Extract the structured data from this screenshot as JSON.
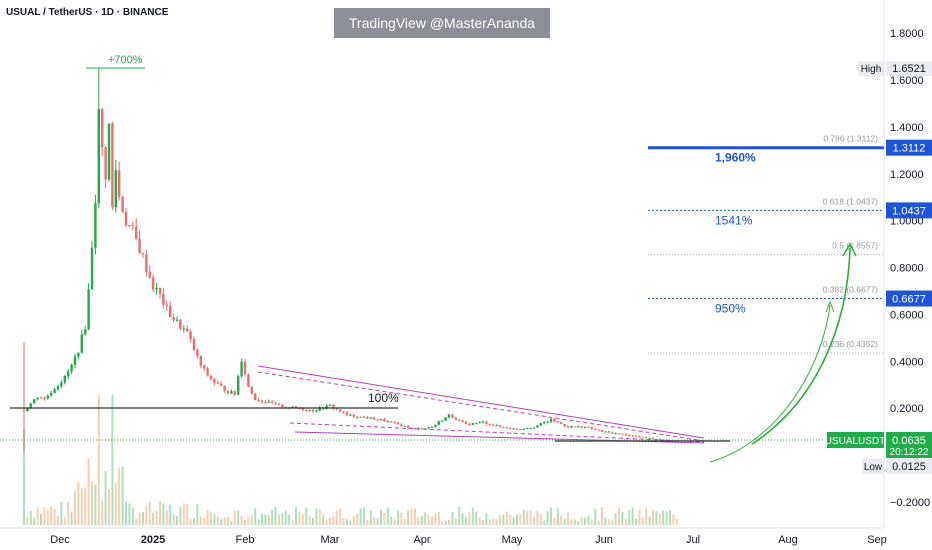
{
  "header": {
    "symbol_line": "USUAL / TetherUS · 1D · BINANCE",
    "watermark": "TradingView @MasterAnanda"
  },
  "colors": {
    "up": "#22ab4a",
    "down": "#f06b6b",
    "blue": "#1e55d6",
    "magenta": "#b83fc4",
    "green_arrow": "#2bb03a",
    "baseline": "#333333"
  },
  "chart_data": {
    "type": "candlestick",
    "title": "USUAL / TetherUS · 1D · BINANCE",
    "x_axis_labels": [
      "Dec",
      "2025",
      "Feb",
      "Mar",
      "Apr",
      "May",
      "Jun",
      "Jul",
      "Aug",
      "Sep"
    ],
    "y_axis_labels": [
      "1.8000",
      "1.6000",
      "1.4000",
      "1.2000",
      "1.0000",
      "0.8000",
      "0.6000",
      "0.4000",
      "0.2000",
      "−0.2000"
    ],
    "ylim": [
      -0.27,
      1.92
    ],
    "high": {
      "label": "High",
      "value": "1.6521"
    },
    "low": {
      "label": "Low",
      "value": "0.0125"
    },
    "current": {
      "symbol": "USUALUSDT",
      "price": "0.0635",
      "countdown": "20:12:22"
    },
    "fib_levels": [
      {
        "ratio": "0.786",
        "label": "0.786 (1.3112)",
        "value": 1.3112,
        "price_tag": "1.3112",
        "target": "1,960%"
      },
      {
        "ratio": "0.618",
        "label": "0.618 (1.0437)",
        "value": 1.0437,
        "price_tag": "1.0437",
        "target": "1541%"
      },
      {
        "ratio": "0.5",
        "label": "0.5 (0.8557)",
        "value": 0.8557
      },
      {
        "ratio": "0.382",
        "label": "0.382 (0.6677)",
        "value": 0.6677,
        "price_tag": "0.6677",
        "target": "950%"
      },
      {
        "ratio": "0.236",
        "label": "0.236 (0.4352)",
        "value": 0.4352
      }
    ],
    "annotations": [
      "+700%",
      "100%"
    ],
    "price_path": [
      [
        0,
        0.19
      ],
      [
        2,
        0.22
      ],
      [
        4,
        0.25
      ],
      [
        6,
        0.24
      ],
      [
        8,
        0.27
      ],
      [
        10,
        0.3
      ],
      [
        12,
        0.33
      ],
      [
        14,
        0.38
      ],
      [
        16,
        0.45
      ],
      [
        18,
        0.55
      ],
      [
        19,
        0.7
      ],
      [
        20,
        0.9
      ],
      [
        21,
        1.1
      ],
      [
        22,
        1.45
      ],
      [
        23,
        1.3
      ],
      [
        24,
        1.2
      ],
      [
        25,
        1.4
      ],
      [
        26,
        1.05
      ],
      [
        27,
        1.22
      ],
      [
        28,
        1.1
      ],
      [
        30,
        1.0
      ],
      [
        32,
        0.95
      ],
      [
        34,
        0.88
      ],
      [
        36,
        0.8
      ],
      [
        38,
        0.72
      ],
      [
        40,
        0.68
      ],
      [
        42,
        0.62
      ],
      [
        44,
        0.58
      ],
      [
        46,
        0.55
      ],
      [
        48,
        0.52
      ],
      [
        50,
        0.45
      ],
      [
        52,
        0.38
      ],
      [
        54,
        0.34
      ],
      [
        56,
        0.31
      ],
      [
        58,
        0.29
      ],
      [
        60,
        0.27
      ],
      [
        62,
        0.26
      ],
      [
        64,
        0.41
      ],
      [
        66,
        0.29
      ],
      [
        68,
        0.24
      ],
      [
        70,
        0.23
      ],
      [
        75,
        0.21
      ],
      [
        80,
        0.2
      ],
      [
        85,
        0.19
      ],
      [
        90,
        0.21
      ],
      [
        95,
        0.17
      ],
      [
        100,
        0.16
      ],
      [
        105,
        0.15
      ],
      [
        110,
        0.13
      ],
      [
        115,
        0.11
      ],
      [
        120,
        0.12
      ],
      [
        125,
        0.17
      ],
      [
        130,
        0.13
      ],
      [
        135,
        0.14
      ],
      [
        140,
        0.12
      ],
      [
        145,
        0.11
      ],
      [
        150,
        0.12
      ],
      [
        155,
        0.15
      ],
      [
        160,
        0.12
      ],
      [
        165,
        0.12
      ],
      [
        170,
        0.1
      ],
      [
        175,
        0.09
      ],
      [
        180,
        0.08
      ],
      [
        185,
        0.07
      ],
      [
        190,
        0.064
      ]
    ]
  }
}
